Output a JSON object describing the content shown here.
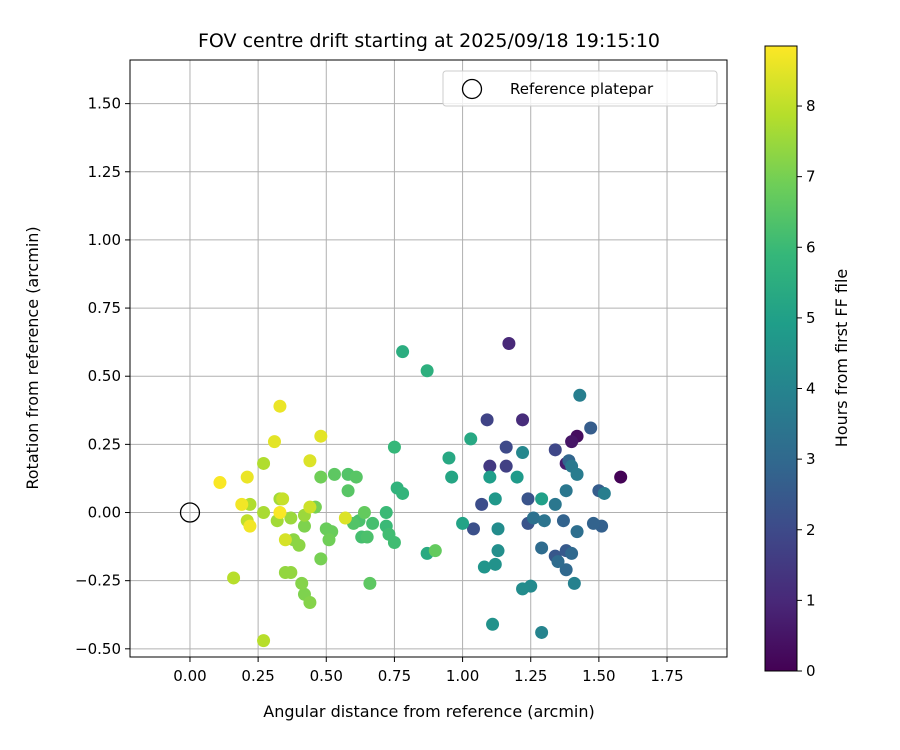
{
  "chart_data": {
    "type": "scatter",
    "title": "FOV centre drift starting at 2025/09/18 19:15:10",
    "xlabel": "Angular distance from reference (arcmin)",
    "ylabel": "Rotation from reference (arcmin)",
    "xlim": [
      -0.22,
      1.97
    ],
    "ylim": [
      -0.53,
      1.66
    ],
    "xticks": [
      0.0,
      0.25,
      0.5,
      0.75,
      1.0,
      1.25,
      1.5,
      1.75
    ],
    "xtick_labels": [
      "0.00",
      "0.25",
      "0.50",
      "0.75",
      "1.00",
      "1.25",
      "1.50",
      "1.75"
    ],
    "yticks": [
      -0.5,
      -0.25,
      0.0,
      0.25,
      0.5,
      0.75,
      1.0,
      1.25,
      1.5
    ],
    "ytick_labels": [
      "−0.50",
      "−0.25",
      "0.00",
      "0.25",
      "0.50",
      "0.75",
      "1.00",
      "1.25",
      "1.50"
    ],
    "grid": true,
    "legend": {
      "position": "top-right",
      "entries": [
        "Reference platepar"
      ]
    },
    "reference_point": {
      "x": 0.0,
      "y": 0.0,
      "marker": "open-circle",
      "color": "#000000"
    },
    "colorbar": {
      "label": "Hours from first FF file",
      "colormap": "viridis",
      "min": 0,
      "max": 8.85,
      "ticks": [
        0,
        1,
        2,
        3,
        4,
        5,
        6,
        7,
        8
      ],
      "tick_labels": [
        "0",
        "1",
        "2",
        "3",
        "4",
        "5",
        "6",
        "7",
        "8"
      ]
    },
    "color_stops": [
      "#440154",
      "#482878",
      "#3e4989",
      "#31688e",
      "#26828e",
      "#1f9e89",
      "#35b779",
      "#6ece58",
      "#b5de2b",
      "#fde725"
    ],
    "points": [
      {
        "x": 1.58,
        "y": 0.13,
        "h": 0.05
      },
      {
        "x": 1.42,
        "y": 0.28,
        "h": 0.3
      },
      {
        "x": 1.4,
        "y": 0.26,
        "h": 0.5
      },
      {
        "x": 1.38,
        "y": 0.18,
        "h": 0.7
      },
      {
        "x": 1.17,
        "y": 0.62,
        "h": 1.0
      },
      {
        "x": 1.22,
        "y": 0.34,
        "h": 1.1
      },
      {
        "x": 1.1,
        "y": 0.17,
        "h": 1.5
      },
      {
        "x": 1.16,
        "y": 0.17,
        "h": 1.7
      },
      {
        "x": 1.09,
        "y": 0.34,
        "h": 1.8
      },
      {
        "x": 1.34,
        "y": 0.23,
        "h": 1.9
      },
      {
        "x": 1.16,
        "y": 0.24,
        "h": 2.0
      },
      {
        "x": 1.07,
        "y": 0.03,
        "h": 2.1
      },
      {
        "x": 1.04,
        "y": -0.06,
        "h": 2.2
      },
      {
        "x": 1.24,
        "y": 0.05,
        "h": 2.3
      },
      {
        "x": 1.24,
        "y": -0.04,
        "h": 2.3
      },
      {
        "x": 1.34,
        "y": -0.16,
        "h": 2.4
      },
      {
        "x": 1.38,
        "y": -0.14,
        "h": 2.5
      },
      {
        "x": 1.47,
        "y": 0.31,
        "h": 2.6
      },
      {
        "x": 1.5,
        "y": 0.08,
        "h": 2.6
      },
      {
        "x": 1.51,
        "y": -0.05,
        "h": 2.7
      },
      {
        "x": 1.48,
        "y": -0.04,
        "h": 2.8
      },
      {
        "x": 1.37,
        "y": -0.03,
        "h": 2.8
      },
      {
        "x": 1.39,
        "y": 0.19,
        "h": 2.9
      },
      {
        "x": 1.38,
        "y": -0.21,
        "h": 3.0
      },
      {
        "x": 1.4,
        "y": -0.15,
        "h": 3.0
      },
      {
        "x": 1.35,
        "y": -0.18,
        "h": 3.1
      },
      {
        "x": 1.29,
        "y": -0.13,
        "h": 3.1
      },
      {
        "x": 1.42,
        "y": -0.07,
        "h": 3.2
      },
      {
        "x": 1.26,
        "y": -0.02,
        "h": 3.3
      },
      {
        "x": 1.3,
        "y": -0.03,
        "h": 3.4
      },
      {
        "x": 1.34,
        "y": 0.03,
        "h": 3.5
      },
      {
        "x": 1.38,
        "y": 0.08,
        "h": 3.5
      },
      {
        "x": 1.4,
        "y": 0.17,
        "h": 3.6
      },
      {
        "x": 1.42,
        "y": 0.14,
        "h": 3.7
      },
      {
        "x": 1.43,
        "y": 0.43,
        "h": 3.8
      },
      {
        "x": 1.52,
        "y": 0.07,
        "h": 3.8
      },
      {
        "x": 1.41,
        "y": -0.26,
        "h": 3.9
      },
      {
        "x": 1.29,
        "y": -0.44,
        "h": 4.0
      },
      {
        "x": 1.22,
        "y": 0.22,
        "h": 4.1
      },
      {
        "x": 1.25,
        "y": -0.27,
        "h": 4.2
      },
      {
        "x": 1.22,
        "y": -0.28,
        "h": 4.3
      },
      {
        "x": 1.13,
        "y": -0.06,
        "h": 4.3
      },
      {
        "x": 1.13,
        "y": -0.14,
        "h": 4.4
      },
      {
        "x": 1.12,
        "y": -0.19,
        "h": 4.5
      },
      {
        "x": 1.11,
        "y": -0.41,
        "h": 4.5
      },
      {
        "x": 1.08,
        "y": -0.2,
        "h": 4.6
      },
      {
        "x": 1.12,
        "y": 0.05,
        "h": 4.7
      },
      {
        "x": 1.2,
        "y": 0.13,
        "h": 4.8
      },
      {
        "x": 1.1,
        "y": 0.13,
        "h": 4.9
      },
      {
        "x": 1.29,
        "y": 0.05,
        "h": 5.0
      },
      {
        "x": 1.0,
        "y": -0.04,
        "h": 5.1
      },
      {
        "x": 0.96,
        "y": 0.13,
        "h": 5.2
      },
      {
        "x": 0.95,
        "y": 0.2,
        "h": 5.3
      },
      {
        "x": 1.03,
        "y": 0.27,
        "h": 5.3
      },
      {
        "x": 0.87,
        "y": -0.15,
        "h": 5.4
      },
      {
        "x": 0.78,
        "y": 0.59,
        "h": 5.5
      },
      {
        "x": 0.87,
        "y": 0.52,
        "h": 5.6
      },
      {
        "x": 0.76,
        "y": 0.09,
        "h": 5.7
      },
      {
        "x": 0.78,
        "y": 0.07,
        "h": 5.8
      },
      {
        "x": 0.75,
        "y": 0.24,
        "h": 5.9
      },
      {
        "x": 0.72,
        "y": 0.0,
        "h": 6.0
      },
      {
        "x": 0.72,
        "y": -0.05,
        "h": 6.0
      },
      {
        "x": 0.73,
        "y": -0.08,
        "h": 6.1
      },
      {
        "x": 0.75,
        "y": -0.11,
        "h": 6.1
      },
      {
        "x": 0.67,
        "y": -0.04,
        "h": 6.2
      },
      {
        "x": 0.63,
        "y": -0.09,
        "h": 6.2
      },
      {
        "x": 0.65,
        "y": -0.09,
        "h": 6.3
      },
      {
        "x": 0.62,
        "y": -0.03,
        "h": 6.3
      },
      {
        "x": 0.6,
        "y": -0.04,
        "h": 6.4
      },
      {
        "x": 0.58,
        "y": 0.14,
        "h": 6.4
      },
      {
        "x": 0.61,
        "y": 0.13,
        "h": 6.5
      },
      {
        "x": 0.58,
        "y": 0.08,
        "h": 6.5
      },
      {
        "x": 0.53,
        "y": 0.14,
        "h": 6.6
      },
      {
        "x": 0.66,
        "y": -0.26,
        "h": 6.6
      },
      {
        "x": 0.9,
        "y": -0.14,
        "h": 6.7
      },
      {
        "x": 0.64,
        "y": 0.0,
        "h": 6.7
      },
      {
        "x": 0.52,
        "y": -0.07,
        "h": 6.8
      },
      {
        "x": 0.5,
        "y": -0.06,
        "h": 6.8
      },
      {
        "x": 0.51,
        "y": -0.1,
        "h": 6.9
      },
      {
        "x": 0.48,
        "y": 0.13,
        "h": 6.9
      },
      {
        "x": 0.46,
        "y": 0.02,
        "h": 7.0
      },
      {
        "x": 0.48,
        "y": -0.17,
        "h": 7.0
      },
      {
        "x": 0.42,
        "y": -0.05,
        "h": 7.1
      },
      {
        "x": 0.42,
        "y": -0.3,
        "h": 7.1
      },
      {
        "x": 0.44,
        "y": -0.33,
        "h": 7.2
      },
      {
        "x": 0.41,
        "y": -0.26,
        "h": 7.2
      },
      {
        "x": 0.4,
        "y": -0.12,
        "h": 7.3
      },
      {
        "x": 0.38,
        "y": -0.1,
        "h": 7.3
      },
      {
        "x": 0.37,
        "y": -0.22,
        "h": 7.4
      },
      {
        "x": 0.35,
        "y": -0.22,
        "h": 7.4
      },
      {
        "x": 0.37,
        "y": -0.02,
        "h": 7.5
      },
      {
        "x": 0.42,
        "y": -0.01,
        "h": 7.5
      },
      {
        "x": 0.33,
        "y": 0.05,
        "h": 7.6
      },
      {
        "x": 0.32,
        "y": -0.03,
        "h": 7.6
      },
      {
        "x": 0.27,
        "y": 0.0,
        "h": 7.7
      },
      {
        "x": 0.27,
        "y": 0.18,
        "h": 7.8
      },
      {
        "x": 0.22,
        "y": 0.03,
        "h": 7.8
      },
      {
        "x": 0.16,
        "y": -0.24,
        "h": 7.9
      },
      {
        "x": 0.27,
        "y": -0.47,
        "h": 7.9
      },
      {
        "x": 0.21,
        "y": -0.03,
        "h": 8.0
      },
      {
        "x": 0.34,
        "y": 0.05,
        "h": 8.1
      },
      {
        "x": 0.44,
        "y": 0.02,
        "h": 8.2
      },
      {
        "x": 0.35,
        "y": -0.1,
        "h": 8.3
      },
      {
        "x": 0.57,
        "y": -0.02,
        "h": 8.4
      },
      {
        "x": 0.44,
        "y": 0.19,
        "h": 8.4
      },
      {
        "x": 0.48,
        "y": 0.28,
        "h": 8.5
      },
      {
        "x": 0.31,
        "y": 0.26,
        "h": 8.5
      },
      {
        "x": 0.33,
        "y": 0.39,
        "h": 8.6
      },
      {
        "x": 0.21,
        "y": 0.13,
        "h": 8.6
      },
      {
        "x": 0.19,
        "y": 0.03,
        "h": 8.7
      },
      {
        "x": 0.22,
        "y": -0.05,
        "h": 8.7
      },
      {
        "x": 0.33,
        "y": 0.0,
        "h": 8.8
      },
      {
        "x": 0.11,
        "y": 0.11,
        "h": 8.8
      }
    ]
  }
}
